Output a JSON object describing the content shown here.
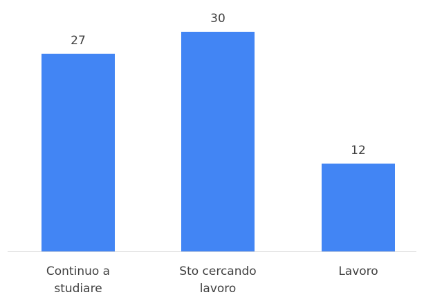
{
  "chart_data": {
    "type": "bar",
    "categories": [
      [
        "Continuo a",
        "studiare"
      ],
      [
        "Sto cercando",
        "lavoro"
      ],
      [
        "Lavoro"
      ]
    ],
    "values": [
      27,
      30,
      12
    ],
    "data_labels": [
      "27",
      "30",
      "12"
    ],
    "ylim": [
      0,
      30
    ],
    "grid": false,
    "legend": "none",
    "bar_color": "#4285F4",
    "axis_color": "#D9D9D9",
    "text_color": "#404040"
  }
}
